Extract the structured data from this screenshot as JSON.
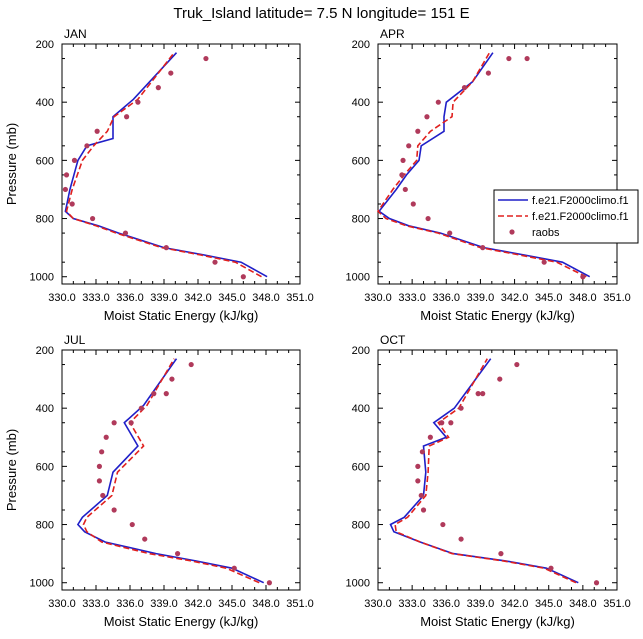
{
  "figure": {
    "title": "Truk_Island  latitude= 7.5 N longitude= 151 E"
  },
  "axes": {
    "xlabel": "Moist Static Energy (kJ/kg)",
    "ylabel": "Pressure (mb)",
    "xlim": [
      330,
      351
    ],
    "ylim": [
      1025,
      200
    ],
    "xticks": [
      "330.0",
      "333.0",
      "336.0",
      "339.0",
      "342.0",
      "345.0",
      "348.0",
      "351.0"
    ],
    "yticks": [
      "200",
      "400",
      "600",
      "800",
      "1000"
    ],
    "y_inverted": true
  },
  "legend": {
    "placement": "right of APR panel",
    "entries": [
      {
        "name": "f.e21.F2000climo.f1",
        "style": "solid",
        "color": "#1f1fc8"
      },
      {
        "name": "f.e21.F2000climo.f1",
        "style": "dashed",
        "color": "#e0201e"
      },
      {
        "name": "raobs",
        "style": "dots",
        "color": "#b03a5b"
      }
    ]
  },
  "colors": {
    "model_solid": "#1f1fc8",
    "model_dashed": "#e0201e",
    "obs": "#b03a5b"
  },
  "chart_data": [
    {
      "type": "line",
      "panel": "JAN",
      "title": "JAN",
      "series": [
        {
          "name": "f.e21.F2000climo.f1",
          "style": "solid",
          "x": [
            348.1,
            345.8,
            342.5,
            339.0,
            335.0,
            333.2,
            331.0,
            330.3,
            330.7,
            331.4,
            332.2,
            334.5,
            334.5,
            336.3,
            340.1
          ],
          "y": [
            1000,
            950,
            925,
            900,
            850,
            825,
            800,
            775,
            700,
            600,
            550,
            525,
            450,
            390,
            230
          ]
        },
        {
          "name": "f.e21.F2000climo.f1",
          "style": "dashed",
          "x": [
            347.6,
            345.3,
            342.2,
            338.8,
            334.8,
            333.0,
            331.0,
            330.4,
            330.9,
            331.8,
            332.8,
            334.0,
            334.6,
            336.7,
            339.9
          ],
          "y": [
            1000,
            950,
            925,
            900,
            850,
            825,
            800,
            775,
            700,
            600,
            550,
            500,
            450,
            390,
            230
          ]
        },
        {
          "name": "raobs",
          "style": "dots",
          "x": [
            346.0,
            343.5,
            339.2,
            335.6,
            332.7,
            330.9,
            330.3,
            330.4,
            331.1,
            332.2,
            333.1,
            335.7,
            336.7,
            338.5,
            339.6,
            342.7
          ],
          "y": [
            1000,
            950,
            900,
            850,
            800,
            750,
            700,
            650,
            600,
            550,
            500,
            450,
            400,
            350,
            300,
            250
          ]
        }
      ]
    },
    {
      "type": "line",
      "panel": "APR",
      "title": "APR",
      "series": [
        {
          "name": "f.e21.F2000climo.f1",
          "style": "solid",
          "x": [
            348.6,
            346.2,
            342.8,
            339.3,
            335.5,
            332.7,
            331.0,
            330.1,
            331.6,
            332.5,
            333.6,
            333.8,
            335.8,
            335.8,
            336.0,
            338.3,
            340.1
          ],
          "y": [
            1000,
            950,
            925,
            900,
            850,
            825,
            800,
            775,
            700,
            650,
            600,
            550,
            500,
            450,
            400,
            330,
            230
          ]
        },
        {
          "name": "f.e21.F2000climo.f1",
          "style": "dashed",
          "x": [
            348.3,
            345.7,
            342.4,
            339.0,
            335.3,
            332.5,
            330.7,
            330.0,
            331.3,
            332.3,
            333.4,
            333.5,
            334.6,
            336.5,
            336.6,
            338.3,
            339.8
          ],
          "y": [
            1000,
            950,
            925,
            900,
            850,
            825,
            800,
            775,
            700,
            650,
            600,
            550,
            500,
            450,
            400,
            330,
            230
          ]
        },
        {
          "name": "raobs",
          "style": "dots",
          "x": [
            348.0,
            344.6,
            339.2,
            336.3,
            334.4,
            333.1,
            332.4,
            332.1,
            332.2,
            332.7,
            333.5,
            334.3,
            335.3,
            337.6,
            339.7,
            341.5,
            343.1
          ],
          "y": [
            1000,
            950,
            900,
            850,
            800,
            750,
            700,
            650,
            600,
            550,
            500,
            450,
            400,
            350,
            300,
            250,
            250
          ]
        }
      ]
    },
    {
      "type": "line",
      "panel": "JUL",
      "title": "JUL",
      "series": [
        {
          "name": "f.e21.F2000climo.f1",
          "style": "solid",
          "x": [
            347.8,
            345.0,
            341.8,
            338.3,
            333.8,
            332.0,
            331.4,
            331.8,
            334.0,
            334.5,
            336.7,
            335.5,
            337.2,
            340.1
          ],
          "y": [
            1000,
            950,
            925,
            900,
            860,
            825,
            800,
            775,
            700,
            620,
            530,
            450,
            390,
            230
          ]
        },
        {
          "name": "f.e21.F2000climo.f1",
          "style": "dashed",
          "x": [
            347.4,
            344.5,
            341.4,
            337.7,
            333.5,
            332.2,
            331.9,
            332.2,
            334.4,
            334.9,
            337.2,
            336.0,
            337.5,
            339.9
          ],
          "y": [
            1000,
            950,
            925,
            900,
            860,
            825,
            800,
            775,
            700,
            620,
            530,
            450,
            390,
            230
          ]
        },
        {
          "name": "raobs",
          "style": "dots",
          "x": [
            348.3,
            345.2,
            340.2,
            337.3,
            336.2,
            334.6,
            333.6,
            333.3,
            333.3,
            333.5,
            333.9,
            334.6,
            336.1,
            337.0,
            338.1,
            339.2,
            339.7,
            341.4
          ],
          "y": [
            1000,
            950,
            900,
            850,
            800,
            750,
            700,
            650,
            600,
            550,
            500,
            450,
            450,
            400,
            350,
            350,
            300,
            250
          ]
        }
      ]
    },
    {
      "type": "line",
      "panel": "OCT",
      "title": "OCT",
      "series": [
        {
          "name": "f.e21.F2000climo.f1",
          "style": "solid",
          "x": [
            347.6,
            344.8,
            341.2,
            336.6,
            333.7,
            331.4,
            331.1,
            332.3,
            334.0,
            334.2,
            334.0,
            336.0,
            334.9,
            336.7,
            339.9
          ],
          "y": [
            1000,
            950,
            925,
            900,
            860,
            825,
            800,
            775,
            700,
            620,
            530,
            500,
            450,
            400,
            230
          ]
        },
        {
          "name": "f.e21.F2000climo.f1",
          "style": "dashed",
          "x": [
            347.4,
            344.6,
            341.0,
            336.5,
            333.7,
            331.6,
            331.5,
            332.6,
            334.2,
            334.4,
            334.5,
            336.2,
            335.3,
            337.1,
            339.6
          ],
          "y": [
            1000,
            950,
            925,
            900,
            860,
            825,
            800,
            775,
            700,
            620,
            530,
            500,
            450,
            400,
            230
          ]
        },
        {
          "name": "raobs",
          "style": "dots",
          "x": [
            349.2,
            345.2,
            340.8,
            337.3,
            335.7,
            334.0,
            333.8,
            333.5,
            333.5,
            333.9,
            334.6,
            335.6,
            336.4,
            337.3,
            338.8,
            339.2,
            340.7,
            342.2
          ],
          "y": [
            1000,
            950,
            900,
            850,
            800,
            750,
            700,
            650,
            600,
            550,
            500,
            450,
            450,
            400,
            350,
            350,
            300,
            250
          ]
        }
      ]
    }
  ]
}
